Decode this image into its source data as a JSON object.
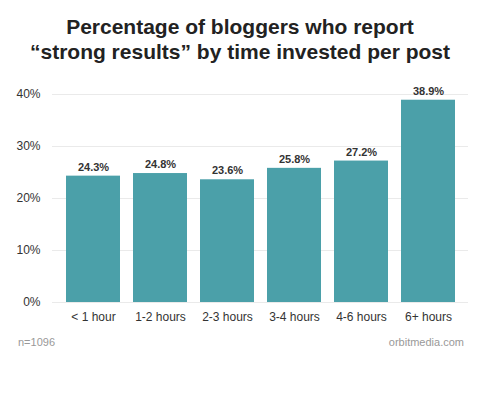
{
  "chart_data": {
    "type": "bar",
    "title": "Percentage of bloggers who report\n“strong results” by time invested per post",
    "categories": [
      "< 1 hour",
      "1-2 hours",
      "2-3 hours",
      "3-4 hours",
      "4-6 hours",
      "6+ hours"
    ],
    "values": [
      24.3,
      24.8,
      23.6,
      25.8,
      27.2,
      38.9
    ],
    "value_labels": [
      "24.3%",
      "24.8%",
      "23.6%",
      "25.8%",
      "27.2%",
      "38.9%"
    ],
    "color": "#4ba0a9",
    "ylim": [
      0,
      40
    ],
    "yticks": [
      {
        "value": 0,
        "label": "0%"
      },
      {
        "value": 10,
        "label": "10%"
      },
      {
        "value": 20,
        "label": "20%"
      },
      {
        "value": 30,
        "label": "30%"
      },
      {
        "value": 40,
        "label": "40%"
      }
    ],
    "grid": true,
    "data_labels": true,
    "annotations": [
      "n=1096",
      "orbitmedia.com"
    ]
  }
}
